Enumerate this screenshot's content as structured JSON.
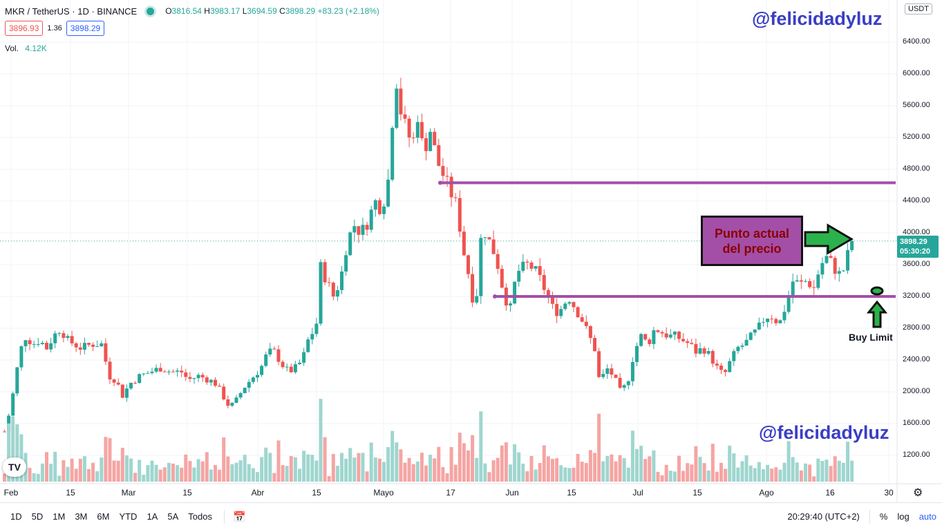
{
  "header": {
    "symbol": "MKR / TetherUS · 1D · BINANCE",
    "ohlc": {
      "o": "3816.54",
      "h": "3983.17",
      "l": "3694.59",
      "c": "3898.29",
      "change": "+83.23 (+2.18%)"
    },
    "sell_price": "3896.93",
    "spread": "1.36",
    "buy_price": "3898.29",
    "volume_label": "Vol.",
    "volume_value": "4.12K"
  },
  "watermarks": [
    "@felicidadyluz",
    "@felicidadyluz"
  ],
  "axis": {
    "currency_badge": "USDT",
    "y_ticks": [
      "6400.00",
      "6000.00",
      "5600.00",
      "5200.00",
      "4800.00",
      "4400.00",
      "4000.00",
      "3600.00",
      "3200.00",
      "2800.00",
      "2400.00",
      "2000.00",
      "1600.00",
      "1200.00"
    ],
    "x_ticks": [
      "Feb",
      "15",
      "Mar",
      "15",
      "Abr",
      "15",
      "Mayo",
      "17",
      "Jun",
      "15",
      "Jul",
      "15",
      "Ago",
      "16",
      "30"
    ],
    "current_price": "3898.29",
    "countdown": "05:30:20"
  },
  "annotations": {
    "box_line1": "Punto actual",
    "box_line2": "del precio",
    "buy_limit": "Buy Limit",
    "colors": {
      "lines": "#a34fa7",
      "arrow": "#2bb24c",
      "box": "#a34fa7"
    }
  },
  "bottom_bar": {
    "timeframes": [
      "1D",
      "5D",
      "1M",
      "3M",
      "6M",
      "YTD",
      "1A",
      "5A",
      "Todos"
    ],
    "time": "20:29:40 (UTC+2)",
    "percent": "%",
    "log": "log",
    "auto": "auto"
  },
  "colors": {
    "up": "#26a69a",
    "down": "#ef5350",
    "up_vol": "#9fd6cf",
    "down_vol": "#f5a5a3"
  },
  "chart_data": {
    "type": "candlestick",
    "anchor_points": [
      [
        0,
        1450
      ],
      [
        4,
        1500
      ],
      [
        10,
        1700
      ],
      [
        18,
        2050
      ],
      [
        26,
        2500
      ],
      [
        35,
        2700
      ],
      [
        45,
        2600
      ],
      [
        55,
        2650
      ],
      [
        65,
        2550
      ],
      [
        75,
        2700
      ],
      [
        85,
        2800
      ],
      [
        95,
        2650
      ],
      [
        105,
        2600
      ],
      [
        115,
        2550
      ],
      [
        130,
        2600
      ],
      [
        145,
        2600
      ],
      [
        155,
        2200
      ],
      [
        165,
        2150
      ],
      [
        175,
        1950
      ],
      [
        185,
        2100
      ],
      [
        200,
        2200
      ],
      [
        215,
        2250
      ],
      [
        230,
        2300
      ],
      [
        245,
        2250
      ],
      [
        260,
        2250
      ],
      [
        270,
        2150
      ],
      [
        285,
        2200
      ],
      [
        300,
        2150
      ],
      [
        310,
        2100
      ],
      [
        320,
        1950
      ],
      [
        330,
        1800
      ],
      [
        340,
        1900
      ],
      [
        350,
        2050
      ],
      [
        365,
        2200
      ],
      [
        375,
        2300
      ],
      [
        385,
        2500
      ],
      [
        395,
        2500
      ],
      [
        405,
        2350
      ],
      [
        415,
        2250
      ],
      [
        425,
        2300
      ],
      [
        435,
        2400
      ],
      [
        445,
        2700
      ],
      [
        455,
        2800
      ],
      [
        460,
        3600
      ],
      [
        470,
        3400
      ],
      [
        480,
        3200
      ],
      [
        490,
        3400
      ],
      [
        500,
        3900
      ],
      [
        510,
        4100
      ],
      [
        520,
        4000
      ],
      [
        530,
        4150
      ],
      [
        540,
        4400
      ],
      [
        550,
        4300
      ],
      [
        560,
        4700
      ],
      [
        565,
        5400
      ],
      [
        570,
        6000
      ],
      [
        578,
        5500
      ],
      [
        585,
        5300
      ],
      [
        595,
        5100
      ],
      [
        600,
        5600
      ],
      [
        610,
        5000
      ],
      [
        620,
        5300
      ],
      [
        630,
        4900
      ],
      [
        640,
        4700
      ],
      [
        650,
        4500
      ],
      [
        660,
        4300
      ],
      [
        665,
        3900
      ],
      [
        675,
        3500
      ],
      [
        685,
        3000
      ],
      [
        695,
        4100
      ],
      [
        705,
        3900
      ],
      [
        715,
        3700
      ],
      [
        725,
        3300
      ],
      [
        735,
        3000
      ],
      [
        745,
        3500
      ],
      [
        760,
        3600
      ],
      [
        770,
        3550
      ],
      [
        780,
        3400
      ],
      [
        790,
        3200
      ],
      [
        800,
        3000
      ],
      [
        810,
        3050
      ],
      [
        820,
        3200
      ],
      [
        830,
        3050
      ],
      [
        840,
        2900
      ],
      [
        850,
        2700
      ],
      [
        860,
        2500
      ],
      [
        865,
        2100
      ],
      [
        875,
        2300
      ],
      [
        885,
        2200
      ],
      [
        895,
        2000
      ],
      [
        905,
        2100
      ],
      [
        915,
        2500
      ],
      [
        925,
        2700
      ],
      [
        935,
        2600
      ],
      [
        945,
        2800
      ],
      [
        955,
        2750
      ],
      [
        965,
        2700
      ],
      [
        975,
        2700
      ],
      [
        985,
        2650
      ],
      [
        995,
        2600
      ],
      [
        1005,
        2500
      ],
      [
        1015,
        2550
      ],
      [
        1025,
        2450
      ],
      [
        1035,
        2300
      ],
      [
        1045,
        2200
      ],
      [
        1055,
        2400
      ],
      [
        1065,
        2550
      ],
      [
        1075,
        2600
      ],
      [
        1085,
        2700
      ],
      [
        1095,
        2800
      ],
      [
        1105,
        2950
      ],
      [
        1115,
        2950
      ],
      [
        1125,
        2850
      ],
      [
        1135,
        3100
      ],
      [
        1145,
        3400
      ],
      [
        1155,
        3350
      ],
      [
        1165,
        3400
      ],
      [
        1175,
        3300
      ],
      [
        1185,
        3600
      ],
      [
        1195,
        3700
      ],
      [
        1205,
        3550
      ],
      [
        1215,
        3450
      ],
      [
        1225,
        3750
      ],
      [
        1232,
        3898
      ]
    ],
    "horizontal_levels": [
      4630,
      3200
    ],
    "ylim": [
      1000,
      6600
    ]
  }
}
